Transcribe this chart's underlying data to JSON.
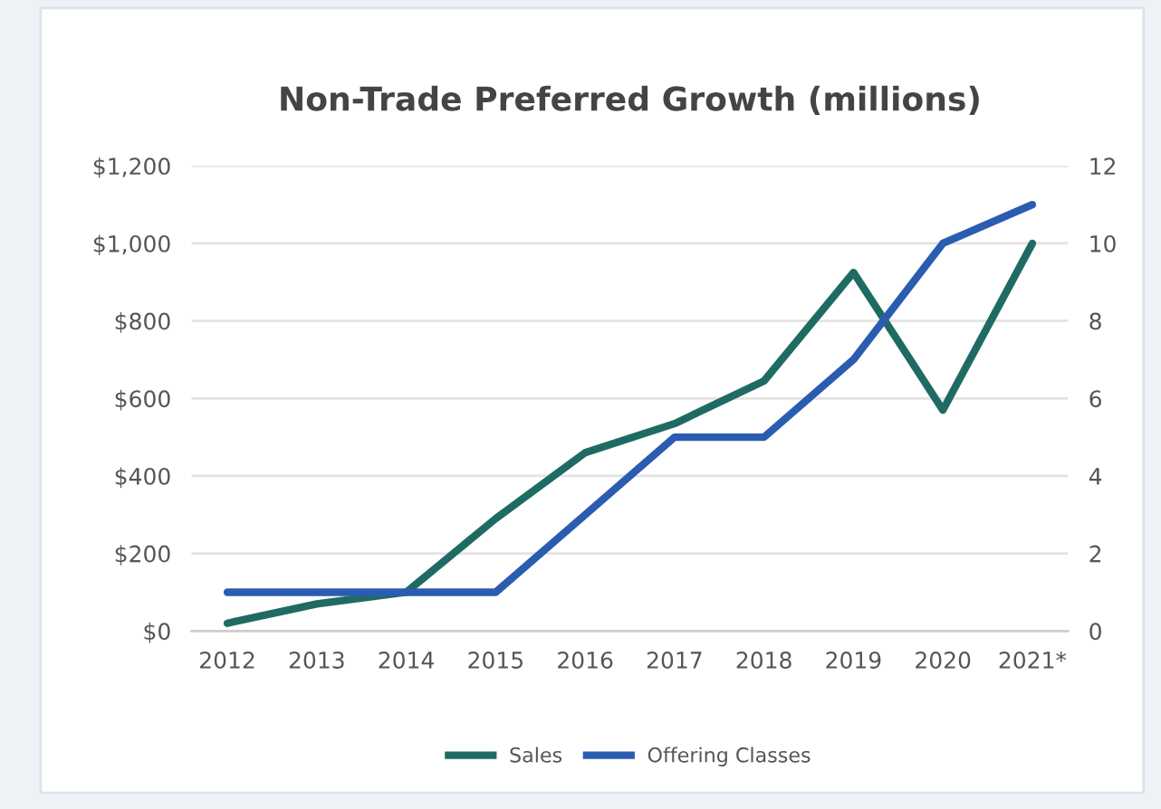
{
  "chart_data": {
    "type": "line",
    "title": "Non-Trade Preferred Growth (millions)",
    "categories": [
      "2012",
      "2013",
      "2014",
      "2015",
      "2016",
      "2017",
      "2018",
      "2019",
      "2020",
      "2021*"
    ],
    "series": [
      {
        "name": "Sales",
        "color": "#1f6b64",
        "values": [
          20,
          70,
          100,
          290,
          460,
          535,
          645,
          925,
          570,
          1000
        ]
      },
      {
        "name": "Offering Classes",
        "color": "#2a5db0",
        "axis": "y2",
        "values": [
          1,
          1,
          1,
          1,
          3,
          5,
          5,
          7,
          10,
          11
        ]
      }
    ],
    "ylim": [
      0,
      1200
    ],
    "yticks": [
      {
        "value": 0,
        "label": "$0"
      },
      {
        "value": 200,
        "label": "$200"
      },
      {
        "value": 400,
        "label": "$400"
      },
      {
        "value": 600,
        "label": "$600"
      },
      {
        "value": 800,
        "label": "$800"
      },
      {
        "value": 1000,
        "label": "$1,000"
      },
      {
        "value": 1200,
        "label": "$1,200"
      }
    ],
    "y2lim": [
      0,
      12
    ],
    "y2ticks": [
      0,
      2,
      4,
      6,
      8,
      10,
      12
    ],
    "grid": "y",
    "legend": "bottom",
    "marker": "none",
    "line_style": "solid"
  }
}
